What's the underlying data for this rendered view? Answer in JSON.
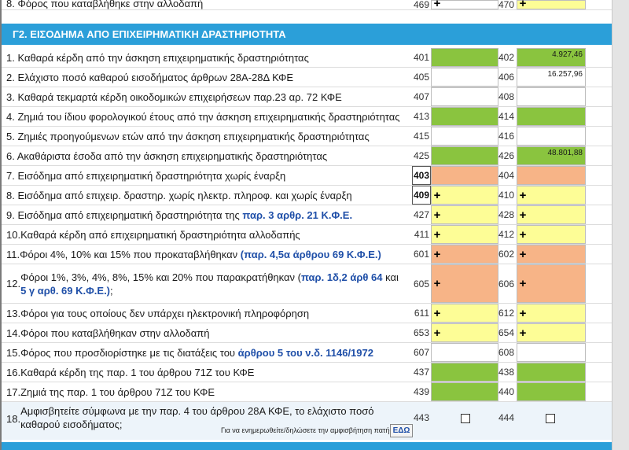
{
  "top_row": {
    "label": "8. Φόρος που καταβλήθηκε στην αλλοδαπή",
    "code1": "469",
    "code2": "470"
  },
  "section": {
    "title": "Γ2. ΕΙΣΟΔΗΜΑ ΑΠΟ ΕΠΙΧΕΙΡΗΜΑΤΙΚΗ ΔΡΑΣΤΗΡΙΟΤΗΤΑ"
  },
  "rows": [
    {
      "label": "1. Καθαρά κέρδη από την άσκηση επιχειρηματικής δραστηριότητας",
      "code1": "401",
      "code2": "402",
      "value2": "4.927,46"
    },
    {
      "label": "2. Ελάχιστο ποσό καθαρού εισοδήματος άρθρων 28Α-28Δ ΚΦΕ",
      "code1": "405",
      "code2": "406",
      "value2": "16.257,96"
    },
    {
      "label": "3. Καθαρά τεκμαρτά κέρδη οικοδομικών επιχειρήσεων παρ.23 αρ. 72 ΚΦΕ",
      "code1": "407",
      "code2": "408"
    },
    {
      "label": "4. Ζημιά του ίδιου φορολογικού έτους από την άσκηση επιχειρηματικής δραστηριότητας",
      "code1": "413",
      "code2": "414"
    },
    {
      "label": "5. Ζημιές προηγούμενων ετών από την άσκηση επιχειρηματικής δραστηριότητας",
      "code1": "415",
      "code2": "416"
    },
    {
      "label": "6. Ακαθάριστα έσοδα από την άσκηση επιχειρηματικής δραστηριότητας",
      "code1": "425",
      "code2": "426",
      "value2": "48.801,88"
    },
    {
      "label": "7. Εισόδημα από επιχειρηματική δραστηριότητα χωρίς έναρξη",
      "code1": "403",
      "code2": "404"
    },
    {
      "label": "8. Εισόδημα από επιχειρ. δραστηρ. χωρίς ηλεκτρ. πληροφ. και χωρίς έναρξη",
      "code1": "409",
      "code2": "410"
    },
    {
      "label": "9. Εισόδημα από επιχειρηματική δραστηριότητα της ",
      "link": "παρ. 3 αρθρ. 21 Κ.Φ.Ε.",
      "code1": "427",
      "code2": "428"
    },
    {
      "label": "10.Καθαρά κέρδη από επιχειρηματική δραστηριότητα αλλοδαπής",
      "code1": "411",
      "code2": "412"
    },
    {
      "label": "11.Φόροι 4%, 10% και 15% που προκαταβλήθηκαν ",
      "link": "(παρ. 4,5α άρθρου 69 Κ.Φ.Ε.)",
      "code1": "601",
      "code2": "602"
    },
    {
      "num": "12.",
      "label": "Φόροι 1%, 3%, 4%, 8%, 15% και 20% που παρακρατήθηκαν (",
      "link": "παρ. 1δ,2 άρθ 64",
      "mid": " και ",
      "link2": "5 γ αρθ. 69 Κ.Φ.Ε.)",
      "end": ";",
      "code1": "605",
      "code2": "606"
    },
    {
      "label": "13.Φόροι για τους οποίους δεν υπάρχει ηλεκτρονική πληροφόρηση",
      "code1": "611",
      "code2": "612"
    },
    {
      "label": "14.Φόροι που καταβλήθηκαν στην αλλοδαπή",
      "code1": "653",
      "code2": "654"
    },
    {
      "label": "15.Φόρος που προσδιορίστηκε με τις διατάξεις του ",
      "link": "άρθρου 5 του ν.δ. 1146/1972",
      "code1": "607",
      "code2": "608"
    },
    {
      "label": "16.Καθαρά κέρδη της παρ. 1 του άρθρου 71Ζ του ΚΦΕ",
      "code1": "437",
      "code2": "438"
    },
    {
      "label": "17.Ζημιά της παρ. 1 του άρθρου 71Ζ του ΚΦΕ",
      "code1": "439",
      "code2": "440"
    },
    {
      "num": "18.",
      "label": "Αμφισβητείτε σύμφωνα με την παρ. 4 του άρθρου 28Α ΚΦΕ, το ελάχιστο ποσό καθαρού εισοδήματος;",
      "code1": "443",
      "code2": "444",
      "note": "Για να ενημερωθείτε/δηλώσετε την αμφισβήτηση πατήστε",
      "button": "ΕΔΩ"
    }
  ],
  "plus_symbol": "+",
  "colors": {
    "header": "#2b9fd9",
    "green": "#8ac43f",
    "peach": "#f7b487",
    "yellow": "#fdfd96",
    "link": "#1f4fa8"
  }
}
